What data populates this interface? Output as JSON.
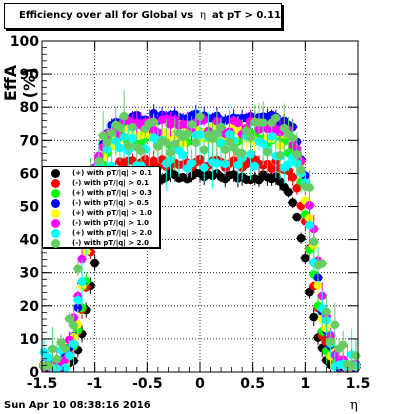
{
  "title": {
    "prefix": "Efficiency over all for Global vs",
    "symbol": "η",
    "suffix": "at pT > 0.11"
  },
  "timestamp": "Sun Apr 10 08:38:16 2016",
  "chart_data": {
    "type": "scatter",
    "xlabel": "η",
    "ylabel": "EffA (%)",
    "xlim": [
      -1.5,
      1.5
    ],
    "ylim": [
      0,
      100
    ],
    "x_ticks": [
      "-1.5",
      "-1",
      "-0.5",
      "0",
      "0.5",
      "1",
      "1.5"
    ],
    "y_ticks": [
      "0",
      "10",
      "20",
      "30",
      "40",
      "50",
      "60",
      "70",
      "80",
      "90",
      "100"
    ],
    "grid": true,
    "legend_position": "middle-left",
    "series": [
      {
        "name": "(+) with pT/|q| > 0.1",
        "color": "#000000",
        "plateau": 59,
        "edge": 1.02,
        "half": 0.07,
        "spread": 1.2
      },
      {
        "name": "(-) with pT/|q| > 0.1",
        "color": "#ff0000",
        "plateau": 63,
        "edge": 1.06,
        "half": 0.07,
        "spread": 1.5
      },
      {
        "name": "(+) with pT/|q| > 0.3",
        "color": "#00ff00",
        "plateau": 71,
        "edge": 1.05,
        "half": 0.07,
        "spread": 2.5
      },
      {
        "name": "(-) with pT/|q| > 0.5",
        "color": "#0000ff",
        "plateau": 77,
        "edge": 1.08,
        "half": 0.07,
        "spread": 1.2
      },
      {
        "name": "(+) with pT/|q| > 1.0",
        "color": "#ffff00",
        "plateau": 72,
        "edge": 1.08,
        "half": 0.07,
        "spread": 3
      },
      {
        "name": "(-) with pT/|q| > 1.0",
        "color": "#ff00ff",
        "plateau": 74,
        "edge": 1.1,
        "half": 0.07,
        "spread": 2.5
      },
      {
        "name": "(+) with pT/|q| > 2.0",
        "color": "#00ffff",
        "plateau": 66,
        "edge": 1.1,
        "half": 0.07,
        "spread": 6
      },
      {
        "name": "(-) with pT/|q| > 2.0",
        "color": "#66cc66",
        "plateau": 72,
        "edge": 1.12,
        "half": 0.08,
        "spread": 6
      }
    ]
  }
}
